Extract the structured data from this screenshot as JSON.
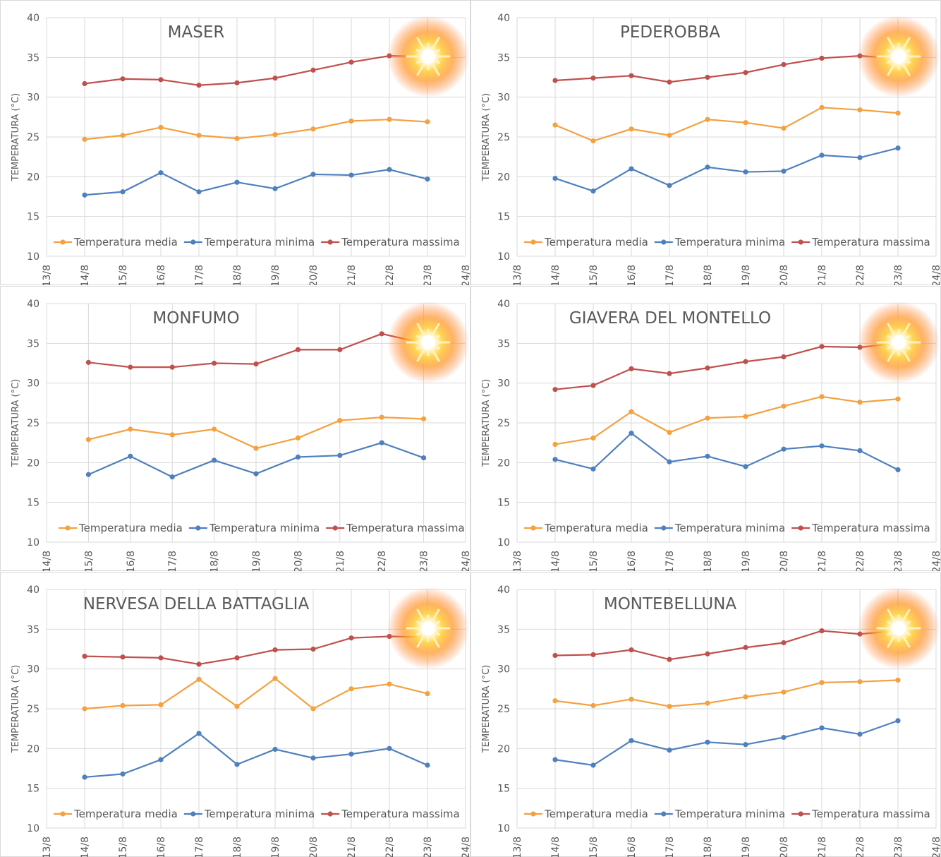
{
  "colors": {
    "media": "#f4a140",
    "minima": "#4e80bd",
    "massima": "#c0504d",
    "grid": "#d9d9d9",
    "text": "#595959"
  },
  "legend_labels": [
    "Temperatura media",
    "Temperatura minima",
    "Temperatura massima"
  ],
  "decoration": "sun-icon",
  "chart_data": [
    {
      "type": "line",
      "title": "MASER",
      "ylabel": "TEMPERATURA (°C)",
      "xlabel": "",
      "ylim": [
        10,
        40
      ],
      "yticks": [
        10,
        15,
        20,
        25,
        30,
        35,
        40
      ],
      "categories": [
        "13/8",
        "14/8",
        "15/8",
        "16/8",
        "17/8",
        "18/8",
        "19/8",
        "20/8",
        "21/8",
        "22/8",
        "23/8",
        "24/8"
      ],
      "legend_position": "bottom",
      "grid": true,
      "series": [
        {
          "name": "Temperatura media",
          "values": [
            null,
            24.7,
            25.2,
            26.2,
            25.2,
            24.8,
            25.3,
            26.0,
            27.0,
            27.2,
            26.9,
            null
          ]
        },
        {
          "name": "Temperatura minima",
          "values": [
            null,
            17.7,
            18.1,
            20.5,
            18.1,
            19.3,
            18.5,
            20.3,
            20.2,
            20.9,
            19.7,
            null
          ]
        },
        {
          "name": "Temperatura massima",
          "values": [
            null,
            31.7,
            32.3,
            32.2,
            31.5,
            31.8,
            32.4,
            33.4,
            34.4,
            35.2,
            35.1,
            null
          ]
        }
      ]
    },
    {
      "type": "line",
      "title": "PEDEROBBA",
      "ylabel": "TEMPERATURA (°C)",
      "xlabel": "",
      "ylim": [
        10,
        40
      ],
      "yticks": [
        10,
        15,
        20,
        25,
        30,
        35,
        40
      ],
      "categories": [
        "13/8",
        "14/8",
        "15/8",
        "16/8",
        "17/8",
        "18/8",
        "19/8",
        "20/8",
        "21/8",
        "22/8",
        "23/8",
        "24/8"
      ],
      "legend_position": "bottom",
      "grid": true,
      "series": [
        {
          "name": "Temperatura media",
          "values": [
            null,
            26.5,
            24.5,
            26.0,
            25.2,
            27.2,
            26.8,
            26.1,
            28.7,
            28.4,
            28.0,
            null
          ]
        },
        {
          "name": "Temperatura minima",
          "values": [
            null,
            19.8,
            18.2,
            21.0,
            18.9,
            21.2,
            20.6,
            20.7,
            22.7,
            22.4,
            23.6,
            null
          ]
        },
        {
          "name": "Temperatura massima",
          "values": [
            null,
            32.1,
            32.4,
            32.7,
            31.9,
            32.5,
            33.1,
            34.1,
            34.9,
            35.2,
            34.9,
            null
          ]
        }
      ]
    },
    {
      "type": "line",
      "title": "MONFUMO",
      "ylabel": "TEMPERATURA (°C)",
      "xlabel": "",
      "ylim": [
        10,
        40
      ],
      "yticks": [
        10,
        15,
        20,
        25,
        30,
        35,
        40
      ],
      "categories": [
        "14/8",
        "15/8",
        "16/8",
        "17/8",
        "18/8",
        "19/8",
        "20/8",
        "21/8",
        "22/8",
        "23/8",
        "24/8"
      ],
      "legend_position": "bottom",
      "grid": true,
      "series": [
        {
          "name": "Temperatura media",
          "values": [
            null,
            22.9,
            24.2,
            23.5,
            24.2,
            21.8,
            23.1,
            25.3,
            25.7,
            25.5,
            null
          ]
        },
        {
          "name": "Temperatura minima",
          "values": [
            null,
            18.5,
            20.8,
            18.2,
            20.3,
            18.6,
            20.7,
            20.9,
            22.5,
            20.6,
            null
          ]
        },
        {
          "name": "Temperatura massima",
          "values": [
            null,
            32.6,
            32.0,
            32.0,
            32.5,
            32.4,
            34.2,
            34.2,
            36.2,
            35.0,
            null
          ]
        }
      ]
    },
    {
      "type": "line",
      "title": "GIAVERA DEL MONTELLO",
      "ylabel": "TEMPERATURA (°C)",
      "xlabel": "",
      "ylim": [
        10,
        40
      ],
      "yticks": [
        10,
        15,
        20,
        25,
        30,
        35,
        40
      ],
      "categories": [
        "13/8",
        "14/8",
        "15/8",
        "16/8",
        "17/8",
        "18/8",
        "19/8",
        "20/8",
        "21/8",
        "22/8",
        "23/8",
        "24/8"
      ],
      "legend_position": "bottom",
      "grid": true,
      "series": [
        {
          "name": "Temperatura media",
          "values": [
            null,
            22.3,
            23.1,
            26.4,
            23.8,
            25.6,
            25.8,
            27.1,
            28.3,
            27.6,
            28.0,
            null
          ]
        },
        {
          "name": "Temperatura minima",
          "values": [
            null,
            20.4,
            19.2,
            23.7,
            20.1,
            20.8,
            19.5,
            21.7,
            22.1,
            21.5,
            19.1,
            null
          ]
        },
        {
          "name": "Temperatura massima",
          "values": [
            null,
            29.2,
            29.7,
            31.8,
            31.2,
            31.9,
            32.7,
            33.3,
            34.6,
            34.5,
            35.0,
            null
          ]
        }
      ]
    },
    {
      "type": "line",
      "title": "NERVESA DELLA BATTAGLIA",
      "ylabel": "TEMPERATURA (°C)",
      "xlabel": "",
      "ylim": [
        10,
        40
      ],
      "yticks": [
        10,
        15,
        20,
        25,
        30,
        35,
        40
      ],
      "categories": [
        "13/8",
        "14/8",
        "15/8",
        "16/8",
        "17/8",
        "18/8",
        "19/8",
        "20/8",
        "21/8",
        "22/8",
        "23/8",
        "24/8"
      ],
      "legend_position": "bottom",
      "grid": true,
      "series": [
        {
          "name": "Temperatura media",
          "values": [
            null,
            25.0,
            25.4,
            25.5,
            28.7,
            25.3,
            28.8,
            25.0,
            27.5,
            28.1,
            26.9,
            null
          ]
        },
        {
          "name": "Temperatura minima",
          "values": [
            null,
            16.4,
            16.8,
            18.6,
            21.9,
            18.0,
            19.9,
            18.8,
            19.3,
            20.0,
            17.9,
            null
          ]
        },
        {
          "name": "Temperatura massima",
          "values": [
            null,
            31.6,
            31.5,
            31.4,
            30.6,
            31.4,
            32.4,
            32.5,
            33.9,
            34.1,
            34.0,
            null
          ]
        }
      ]
    },
    {
      "type": "line",
      "title": "MONTEBELLUNA",
      "ylabel": "TEMPERATURA (°C)",
      "xlabel": "",
      "ylim": [
        10,
        40
      ],
      "yticks": [
        10,
        15,
        20,
        25,
        30,
        35,
        40
      ],
      "categories": [
        "13/8",
        "14/8",
        "15/8",
        "16/8",
        "17/8",
        "18/8",
        "19/8",
        "20/8",
        "21/8",
        "22/8",
        "23/8",
        "24/8"
      ],
      "legend_position": "bottom",
      "grid": true,
      "series": [
        {
          "name": "Temperatura media",
          "values": [
            null,
            26.0,
            25.4,
            26.2,
            25.3,
            25.7,
            26.5,
            27.1,
            28.3,
            28.4,
            28.6,
            null
          ]
        },
        {
          "name": "Temperatura minima",
          "values": [
            null,
            18.6,
            17.9,
            21.0,
            19.8,
            20.8,
            20.5,
            21.4,
            22.6,
            21.8,
            23.5,
            null
          ]
        },
        {
          "name": "Temperatura massima",
          "values": [
            null,
            31.7,
            31.8,
            32.4,
            31.2,
            31.9,
            32.7,
            33.3,
            34.8,
            34.4,
            34.8,
            null
          ]
        }
      ]
    }
  ]
}
